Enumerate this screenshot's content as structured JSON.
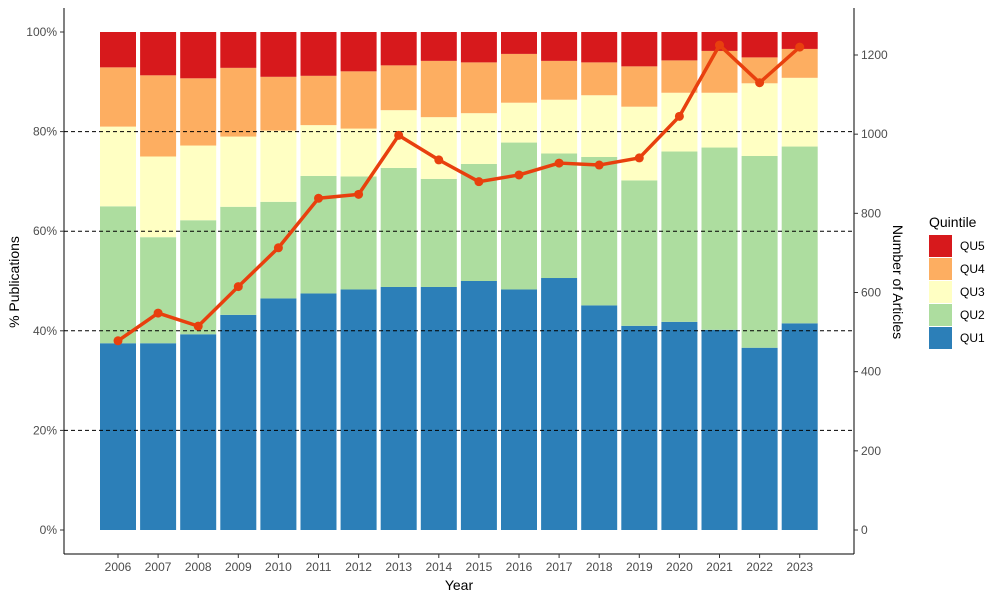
{
  "chart_data": {
    "type": "bar",
    "stacked": true,
    "categories": [
      "2006",
      "2007",
      "2008",
      "2009",
      "2010",
      "2011",
      "2012",
      "2013",
      "2014",
      "2015",
      "2016",
      "2017",
      "2018",
      "2019",
      "2020",
      "2021",
      "2022",
      "2023"
    ],
    "series": [
      {
        "name": "QU1",
        "color": "#2c7fb8",
        "values": [
          37.5,
          37.5,
          39.3,
          43.2,
          46.5,
          47.5,
          48.3,
          48.8,
          48.8,
          50.0,
          48.3,
          50.6,
          45.1,
          41.0,
          41.8,
          40.2,
          36.6,
          41.5
        ]
      },
      {
        "name": "QU2",
        "color": "#addd9f",
        "values": [
          27.5,
          21.3,
          22.9,
          21.7,
          19.4,
          23.6,
          22.7,
          23.9,
          21.7,
          23.5,
          29.5,
          25.0,
          29.8,
          29.2,
          34.2,
          36.6,
          38.5,
          35.5
        ]
      },
      {
        "name": "QU3",
        "color": "#ffffc3",
        "values": [
          16.0,
          16.2,
          15.0,
          14.1,
          14.3,
          10.2,
          9.6,
          11.6,
          12.4,
          10.2,
          8.0,
          10.8,
          12.4,
          14.8,
          11.8,
          11.0,
          14.6,
          13.8
        ]
      },
      {
        "name": "QU4",
        "color": "#fdae61",
        "values": [
          11.9,
          16.3,
          13.5,
          13.8,
          10.8,
          9.9,
          11.5,
          9.0,
          11.3,
          10.2,
          9.8,
          7.8,
          6.6,
          8.1,
          6.5,
          8.4,
          5.2,
          5.8
        ]
      },
      {
        "name": "QU5",
        "color": "#d7191c",
        "values": [
          7.1,
          8.7,
          9.3,
          7.2,
          9.0,
          8.8,
          7.9,
          6.7,
          5.8,
          6.1,
          4.4,
          5.8,
          6.1,
          6.9,
          5.7,
          3.8,
          5.1,
          3.4
        ]
      }
    ],
    "line": {
      "values": [
        478,
        548,
        515,
        615,
        713,
        838,
        848,
        997,
        935,
        880,
        897,
        927,
        922,
        940,
        1045,
        1225,
        1130,
        1220
      ],
      "color": "#e8400e"
    },
    "xlabel": "Year",
    "ylabel": "% Publications",
    "y2label": "Number of Articles",
    "ylim": [
      0,
      100
    ],
    "y2lim": [
      0,
      1250
    ],
    "yticks": [
      0,
      20,
      40,
      60,
      80,
      100
    ],
    "ytick_labels": [
      "0%",
      "20%",
      "40%",
      "60%",
      "80%",
      "100%"
    ],
    "y2ticks": [
      0,
      200,
      400,
      600,
      800,
      1000,
      1200
    ],
    "y2tick_labels": [
      "0",
      "200",
      "400",
      "600",
      "800",
      "1000",
      "1200"
    ],
    "reference_lines_pct": [
      20,
      40,
      60,
      80
    ],
    "legend": {
      "title": "Quintile",
      "position": "right",
      "order": [
        "QU5",
        "QU4",
        "QU3",
        "QU2",
        "QU1"
      ]
    },
    "grid": false
  }
}
